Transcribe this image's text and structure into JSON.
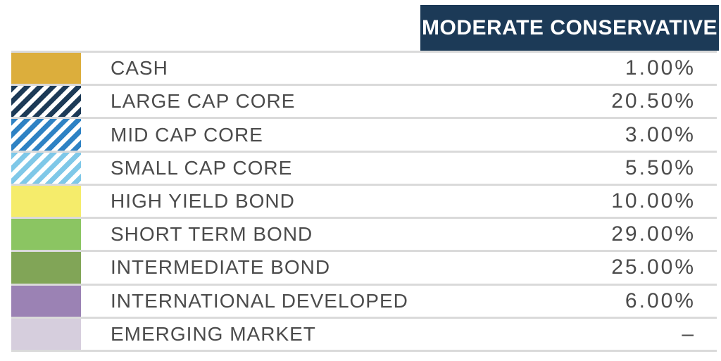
{
  "header": {
    "title": "MODERATE CONSERVATIVE",
    "bg_color": "#1C3A57",
    "text_color": "#FFFFFF"
  },
  "table": {
    "divider_color": "#DADADA",
    "text_color": "#4B4B4B",
    "rows": [
      {
        "label": "CASH",
        "value": "1.00%",
        "swatch": {
          "name": "cash-swatch",
          "type": "solid",
          "color": "#DCAE3C"
        }
      },
      {
        "label": "LARGE CAP CORE",
        "value": "20.50%",
        "swatch": {
          "name": "large-cap-core-swatch",
          "type": "stripes",
          "color": "#1C3A57"
        }
      },
      {
        "label": "MID CAP CORE",
        "value": "3.00%",
        "swatch": {
          "name": "mid-cap-core-swatch",
          "type": "stripes",
          "color": "#2E82C4"
        }
      },
      {
        "label": "SMALL CAP CORE",
        "value": "5.50%",
        "swatch": {
          "name": "small-cap-core-swatch",
          "type": "stripes",
          "color": "#7FC8E8"
        }
      },
      {
        "label": "HIGH YIELD BOND",
        "value": "10.00%",
        "swatch": {
          "name": "high-yield-bond-swatch",
          "type": "solid",
          "color": "#F5EC6B"
        }
      },
      {
        "label": "SHORT TERM BOND",
        "value": "29.00%",
        "swatch": {
          "name": "short-term-bond-swatch",
          "type": "solid",
          "color": "#8BC562"
        }
      },
      {
        "label": "INTERMEDIATE BOND",
        "value": "25.00%",
        "swatch": {
          "name": "intermediate-bond-swatch",
          "type": "solid",
          "color": "#81A557"
        }
      },
      {
        "label": "INTERNATIONAL DEVELOPED",
        "value": "6.00%",
        "swatch": {
          "name": "international-developed-swatch",
          "type": "solid",
          "color": "#9B82B4"
        }
      },
      {
        "label": "EMERGING MARKET",
        "value": "–",
        "swatch": {
          "name": "emerging-market-swatch",
          "type": "solid",
          "color": "#D6CEDD"
        }
      }
    ]
  },
  "chart_data": {
    "type": "table",
    "title": "MODERATE CONSERVATIVE",
    "categories": [
      "CASH",
      "LARGE CAP CORE",
      "MID CAP CORE",
      "SMALL CAP CORE",
      "HIGH YIELD BOND",
      "SHORT TERM BOND",
      "INTERMEDIATE BOND",
      "INTERNATIONAL DEVELOPED",
      "EMERGING MARKET"
    ],
    "values": [
      1.0,
      20.5,
      3.0,
      5.5,
      10.0,
      29.0,
      25.0,
      6.0,
      null
    ],
    "value_labels": [
      "1.00%",
      "20.50%",
      "3.00%",
      "5.50%",
      "10.00%",
      "29.00%",
      "25.00%",
      "6.00%",
      "–"
    ],
    "legend_swatch_colors": [
      "#DCAE3C",
      "#1C3A57",
      "#2E82C4",
      "#7FC8E8",
      "#F5EC6B",
      "#8BC562",
      "#81A557",
      "#9B82B4",
      "#D6CEDD"
    ],
    "legend_swatch_patterns": [
      "solid",
      "stripes",
      "stripes",
      "stripes",
      "solid",
      "solid",
      "solid",
      "solid",
      "solid"
    ],
    "unit": "%"
  }
}
